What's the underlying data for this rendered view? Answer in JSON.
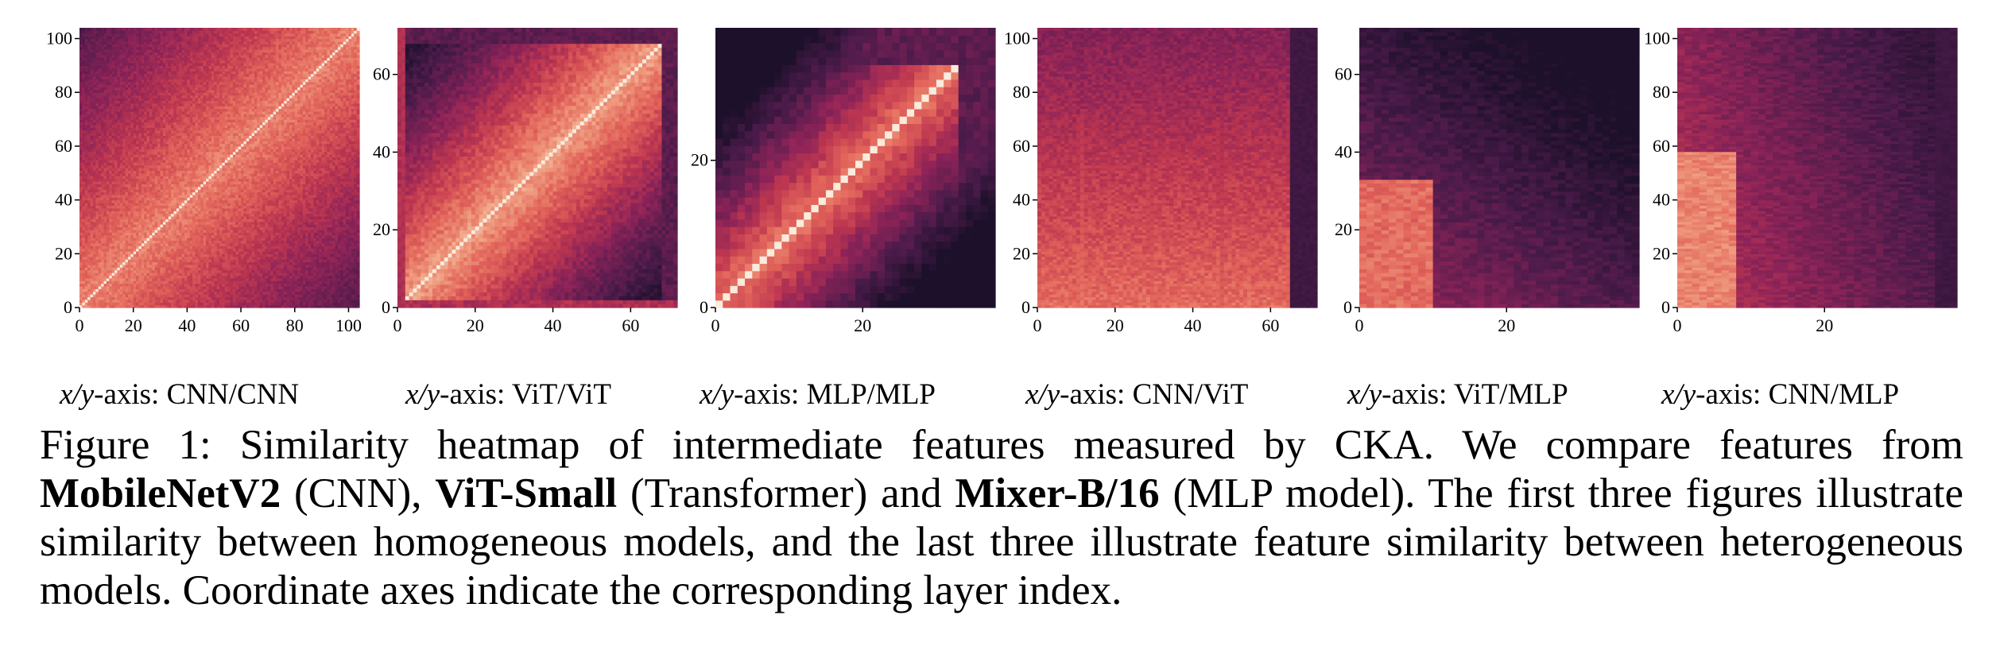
{
  "chart_data": [
    {
      "type": "heatmap",
      "n": 104,
      "xticks": [
        0,
        20,
        40,
        60,
        80,
        100
      ],
      "yticks": [
        0,
        20,
        40,
        60,
        80,
        100
      ],
      "pattern": "cnn_cnn",
      "axis_label_var": "x/y",
      "axis_label_rest": "-axis: CNN/CNN"
    },
    {
      "type": "heatmap",
      "n": 72,
      "xticks": [
        0,
        20,
        40,
        60
      ],
      "yticks": [
        0,
        20,
        40,
        60
      ],
      "pattern": "vit_vit",
      "axis_label_var": "x/y",
      "axis_label_rest": "-axis: ViT/ViT"
    },
    {
      "type": "heatmap",
      "n": 38,
      "xticks": [
        0,
        20
      ],
      "yticks": [
        0,
        20
      ],
      "pattern": "mlp_mlp",
      "axis_label_var": "x/y",
      "axis_label_rest": "-axis: MLP/MLP"
    },
    {
      "type": "heatmap",
      "nx": 72,
      "ny": 104,
      "xticks": [
        0,
        20,
        40,
        60
      ],
      "yticks": [
        0,
        20,
        40,
        60,
        80,
        100
      ],
      "pattern": "cnn_vit",
      "axis_label_var": "x/y",
      "axis_label_rest": "-axis: CNN/ViT"
    },
    {
      "type": "heatmap",
      "nx": 38,
      "ny": 72,
      "xticks": [
        0,
        20
      ],
      "yticks": [
        0,
        20,
        40,
        60
      ],
      "pattern": "vit_mlp",
      "axis_label_var": "x/y",
      "axis_label_rest": "-axis: ViT/MLP"
    },
    {
      "type": "heatmap",
      "nx": 38,
      "ny": 104,
      "xticks": [
        0,
        20
      ],
      "yticks": [
        0,
        20,
        40,
        60,
        80,
        100
      ],
      "pattern": "cnn_mlp",
      "axis_label_var": "x/y",
      "axis_label_rest": "-axis: CNN/MLP"
    }
  ],
  "caption": {
    "prefix": "Figure 1:",
    "text1": " Similarity heatmap of intermediate features measured by CKA. We compare features from ",
    "model1": "MobileNetV2",
    "text2": " (CNN), ",
    "model2": "ViT-Small",
    "text3": " (Transformer) and ",
    "model3": "Mixer-B/16",
    "text4": " (MLP model).  The first three figures illustrate similarity between homogeneous models, and the last three illustrate feature similarity between heterogeneous models. Coordinate axes indicate the corresponding layer index."
  }
}
